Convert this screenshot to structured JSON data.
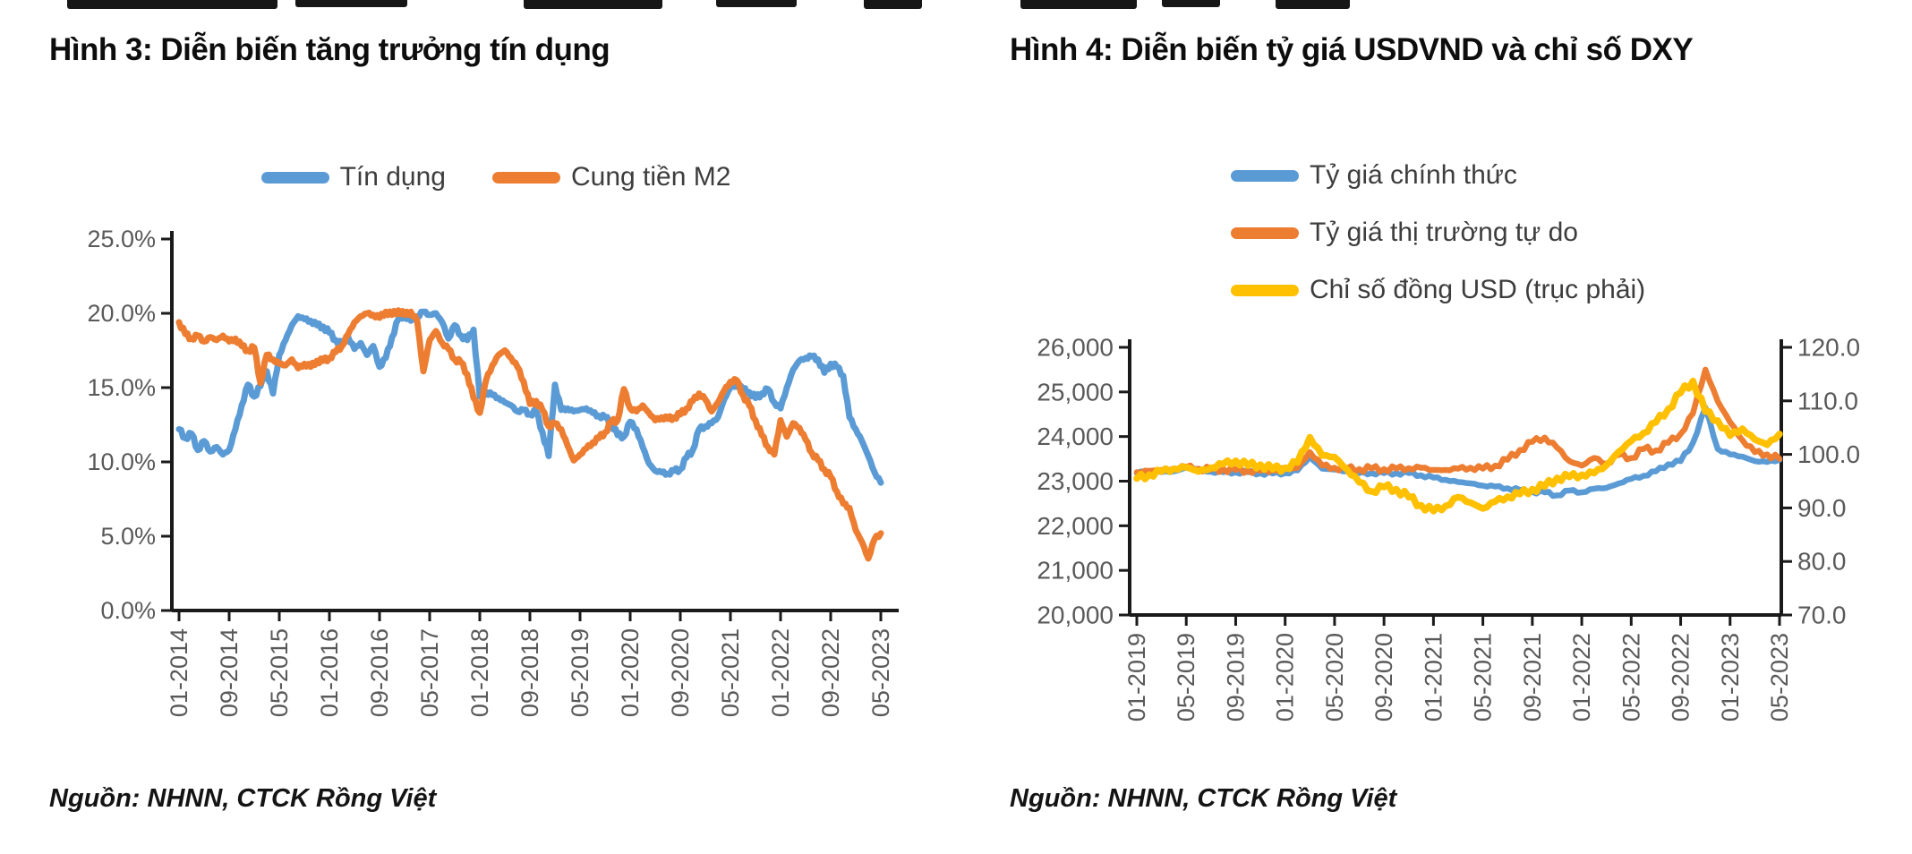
{
  "theme": {
    "background": "#ffffff",
    "axis_color": "#1a1a1a",
    "tick_label_color": "#595959",
    "legend_text_color": "#3d3d3d",
    "title_color": "#0d0d0d"
  },
  "chart_data": [
    {
      "type": "line",
      "title": "Hình 3: Diễn biến tăng trưởng tín dụng",
      "source": "Nguồn: NHNN, CTCK Rồng Việt",
      "x_start": "01-2014",
      "x_end": "05-2023",
      "x_interval": "monthly",
      "x_tick_labels": [
        "01-2014",
        "09-2014",
        "05-2015",
        "01-2016",
        "09-2016",
        "05-2017",
        "01-2018",
        "09-2018",
        "05-2019",
        "01-2020",
        "09-2020",
        "05-2021",
        "01-2022",
        "09-2022",
        "05-2023"
      ],
      "y_tick_labels": [
        "25.0%",
        "20.0%",
        "15.0%",
        "10.0%",
        "5.0%",
        "0.0%"
      ],
      "ylim": [
        0,
        25
      ],
      "y_unit": "percent",
      "grid": false,
      "legend_position": "top-center",
      "series": [
        {
          "name": "Tín dụng",
          "color": "#5B9BD5",
          "values": [
            12.2,
            11.6,
            11.9,
            10.8,
            11.4,
            10.7,
            11.0,
            10.5,
            10.8,
            12.2,
            13.8,
            15.2,
            14.4,
            15.1,
            16.1,
            14.6,
            17.2,
            18.2,
            19.2,
            19.8,
            19.6,
            19.5,
            19.2,
            19.1,
            18.7,
            18.2,
            17.9,
            18.4,
            17.6,
            18.0,
            17.2,
            17.8,
            16.4,
            17.0,
            18.4,
            19.6,
            19.9,
            19.5,
            19.8,
            20.1,
            19.9,
            20.0,
            19.4,
            18.3,
            19.2,
            18.5,
            18.2,
            18.9,
            14.4,
            14.7,
            14.5,
            14.3,
            14.0,
            13.8,
            13.4,
            13.5,
            13.2,
            13.4,
            12.0,
            10.4,
            15.2,
            13.5,
            13.6,
            13.4,
            13.5,
            13.6,
            13.3,
            13.1,
            13.0,
            12.6,
            11.8,
            11.7,
            12.7,
            12.2,
            11.0,
            9.9,
            9.4,
            9.3,
            9.2,
            9.4,
            9.5,
            10.3,
            10.8,
            12.2,
            12.4,
            12.6,
            13.0,
            14.2,
            15.0,
            15.2,
            14.9,
            14.7,
            14.3,
            14.6,
            14.9,
            14.0,
            13.6,
            15.0,
            16.2,
            16.8,
            17.0,
            17.1,
            16.9,
            16.0,
            16.6,
            16.4,
            15.8,
            13.0,
            12.2,
            11.4,
            10.4,
            9.3,
            8.6
          ]
        },
        {
          "name": "Cung tiền M2",
          "color": "#ED7D31",
          "values": [
            19.4,
            18.6,
            18.3,
            18.5,
            18.1,
            18.4,
            18.2,
            18.5,
            18.1,
            18.3,
            17.8,
            17.5,
            17.7,
            15.3,
            17.2,
            16.9,
            16.6,
            16.5,
            16.9,
            16.3,
            16.6,
            16.4,
            16.8,
            16.8,
            17.0,
            17.4,
            17.8,
            18.6,
            19.4,
            19.8,
            20.0,
            19.9,
            19.7,
            20.1,
            19.9,
            20.2,
            19.9,
            20.1,
            19.5,
            16.1,
            18.2,
            18.8,
            18.0,
            17.6,
            16.9,
            16.7,
            15.9,
            14.3,
            13.3,
            15.5,
            16.5,
            17.2,
            17.5,
            17.0,
            16.4,
            15.4,
            13.9,
            14.1,
            13.5,
            12.4,
            12.6,
            12.2,
            11.1,
            10.1,
            10.5,
            10.9,
            11.3,
            11.6,
            12.0,
            12.7,
            12.8,
            14.9,
            13.6,
            13.4,
            13.8,
            13.3,
            12.8,
            13.0,
            12.9,
            13.0,
            13.2,
            13.6,
            14.1,
            14.6,
            14.2,
            13.4,
            14.0,
            14.8,
            15.4,
            15.5,
            14.5,
            13.8,
            12.8,
            11.8,
            11.0,
            10.5,
            12.8,
            11.7,
            12.6,
            12.3,
            11.5,
            10.6,
            10.1,
            9.5,
            9.0,
            8.0,
            7.2,
            6.9,
            5.4,
            4.6,
            3.5,
            4.8,
            5.2
          ]
        }
      ]
    },
    {
      "type": "line",
      "title": "Hình 4: Diễn biến tỷ giá USDVND và chỉ số DXY",
      "source": "Nguồn: NHNN, CTCK Rồng Việt",
      "x_start": "01-2019",
      "x_end": "05-2023",
      "x_interval": "monthly",
      "x_tick_labels": [
        "01-2019",
        "05-2019",
        "09-2019",
        "01-2020",
        "05-2020",
        "09-2020",
        "01-2021",
        "05-2021",
        "09-2021",
        "01-2022",
        "05-2022",
        "09-2022",
        "01-2023",
        "05-2023"
      ],
      "left_y_tick_labels": [
        "26,000",
        "25,000",
        "24,000",
        "23,000",
        "22,000",
        "21,000",
        "20,000"
      ],
      "left_ylim": [
        20000,
        26000
      ],
      "right_y_tick_labels": [
        "120.0",
        "110.0",
        "100.0",
        "90.0",
        "80.0",
        "70.0"
      ],
      "right_ylim": [
        70,
        120
      ],
      "grid": false,
      "legend_position": "top-left-stacked",
      "series": [
        {
          "name": "Tỷ giá chính thức",
          "color": "#5B9BD5",
          "axis": "left",
          "values": [
            23180,
            23200,
            23200,
            23220,
            23300,
            23260,
            23210,
            23200,
            23200,
            23200,
            23180,
            23170,
            23180,
            23240,
            23550,
            23280,
            23260,
            23220,
            23180,
            23180,
            23180,
            23180,
            23180,
            23130,
            23080,
            23030,
            22980,
            22950,
            22900,
            22880,
            22840,
            22800,
            22760,
            22750,
            22680,
            22790,
            22750,
            22830,
            22850,
            22950,
            23050,
            23120,
            23220,
            23380,
            23450,
            23860,
            24650,
            23720,
            23600,
            23550,
            23450,
            23430,
            23480
          ]
        },
        {
          "name": "Tỷ giá thị trường tự do",
          "color": "#ED7D31",
          "axis": "left",
          "values": [
            23200,
            23230,
            23250,
            23280,
            23320,
            23280,
            23260,
            23270,
            23250,
            23240,
            23230,
            23250,
            23280,
            23300,
            23650,
            23350,
            23300,
            23280,
            23270,
            23280,
            23270,
            23280,
            23290,
            23300,
            23250,
            23250,
            23280,
            23300,
            23280,
            23350,
            23480,
            23700,
            23880,
            23980,
            23750,
            23450,
            23350,
            23520,
            23390,
            23590,
            23520,
            23720,
            23690,
            23860,
            24060,
            24520,
            25500,
            24790,
            24320,
            23920,
            23650,
            23600,
            23500
          ]
        },
        {
          "name": "Chỉ số đồng USD (trục phải)",
          "color": "#FFC000",
          "axis": "right",
          "values": [
            95.5,
            96.2,
            96.8,
            97.3,
            97.6,
            96.8,
            97.5,
            98.2,
            98.8,
            97.9,
            98.1,
            97.2,
            97.5,
            98.5,
            103.2,
            99.8,
            99.5,
            97.2,
            94.8,
            93.1,
            93.9,
            93.5,
            92.0,
            90.5,
            89.4,
            90.4,
            92.0,
            91.0,
            89.9,
            91.2,
            92.1,
            92.6,
            93.5,
            94.0,
            95.6,
            95.8,
            96.2,
            96.5,
            98.0,
            100.5,
            102.5,
            104.0,
            106.0,
            108.5,
            111.5,
            113.7,
            108.0,
            106.3,
            103.5,
            104.8,
            102.8,
            101.8,
            103.8
          ]
        }
      ]
    }
  ]
}
